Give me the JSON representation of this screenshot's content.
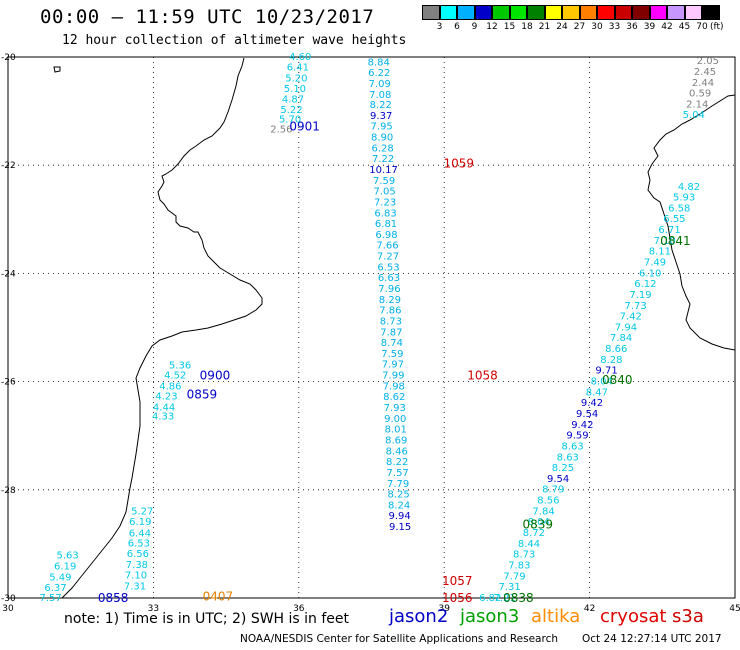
{
  "header": {
    "title": "00:00 – 11:59 UTC 10/23/2017",
    "subtitle": "12 hour collection of altimeter wave heights"
  },
  "scale": {
    "colors": [
      "#808080",
      "#00ffff",
      "#00b0ff",
      "#0000c8",
      "#00c800",
      "#00e600",
      "#008000",
      "#ffff00",
      "#ffc800",
      "#ff8000",
      "#ff0000",
      "#c80000",
      "#800000",
      "#ff00ff",
      "#c896ff",
      "#ffc8ff",
      "#000000"
    ],
    "labels": [
      "3",
      "6",
      "9",
      "12",
      "15",
      "18",
      "21",
      "24",
      "27",
      "30",
      "33",
      "36",
      "39",
      "42",
      "45",
      "70",
      "(ft)"
    ]
  },
  "axes": {
    "lon_ticks": [
      "30",
      "33",
      "36",
      "39",
      "42",
      "45"
    ],
    "lat_ticks": [
      "-20",
      "-22",
      "-24",
      "-26",
      "-28",
      "-30"
    ]
  },
  "passes": [
    {
      "label": "0901",
      "color": "#0000c8",
      "lon": 36.12,
      "lat": -21.27
    },
    {
      "label": "1059",
      "color": "#d00000",
      "lon": 39.3,
      "lat": -21.95
    },
    {
      "label": "0841",
      "color": "#007000",
      "lon": 43.77,
      "lat": -23.38
    },
    {
      "label": "0900",
      "color": "#0000c8",
      "lon": 34.27,
      "lat": -25.87
    },
    {
      "label": "1058",
      "color": "#d00000",
      "lon": 39.79,
      "lat": -25.87
    },
    {
      "label": "0840",
      "color": "#007000",
      "lon": 42.57,
      "lat": -25.95
    },
    {
      "label": "0859",
      "color": "#0000c8",
      "lon": 34.0,
      "lat": -26.22
    },
    {
      "label": "0839",
      "color": "#007000",
      "lon": 40.93,
      "lat": -28.62
    },
    {
      "label": "1057",
      "color": "#d00000",
      "lon": 39.27,
      "lat": -29.67
    },
    {
      "label": "0858",
      "color": "#0000c8",
      "lon": 32.17,
      "lat": -29.98
    },
    {
      "label": "0407",
      "color": "#e08000",
      "lon": 34.33,
      "lat": -29.95
    },
    {
      "label": "1056",
      "color": "#d00000",
      "lon": 39.27,
      "lat": -29.98
    },
    {
      "label": "0838",
      "color": "#007000",
      "lon": 40.53,
      "lat": -29.98
    }
  ],
  "tracks": [
    {
      "id": "t0901",
      "values": [
        {
          "v": "4.60",
          "c": "#00c8e6",
          "lon": 36.03,
          "lat": -19.98
        },
        {
          "v": "6.41",
          "c": "#00c8e6",
          "lon": 35.98,
          "lat": -20.18
        },
        {
          "v": "5.20",
          "c": "#00c8e6",
          "lon": 35.95,
          "lat": -20.38
        },
        {
          "v": "5.10",
          "c": "#00c8e6",
          "lon": 35.92,
          "lat": -20.57
        },
        {
          "v": "4.87",
          "c": "#00c8e6",
          "lon": 35.88,
          "lat": -20.77
        },
        {
          "v": "5.22",
          "c": "#00c8e6",
          "lon": 35.85,
          "lat": -20.96
        },
        {
          "v": "5.70",
          "c": "#00c8e6",
          "lon": 35.82,
          "lat": -21.14
        },
        {
          "v": "2.56",
          "c": "#808080",
          "lon": 35.64,
          "lat": -21.32
        }
      ]
    },
    {
      "id": "t1059",
      "values": [
        {
          "v": "8.84",
          "c": "#00b0e6",
          "lon": 37.65,
          "lat": -20.08
        },
        {
          "v": "6.22",
          "c": "#00b0e6",
          "lon": 37.66,
          "lat": -20.28
        },
        {
          "v": "7.09",
          "c": "#00b0e6",
          "lon": 37.67,
          "lat": -20.48
        },
        {
          "v": "7.08",
          "c": "#00b0e6",
          "lon": 37.68,
          "lat": -20.68
        },
        {
          "v": "8.22",
          "c": "#00b0e6",
          "lon": 37.69,
          "lat": -20.87
        },
        {
          "v": "9.37",
          "c": "#0000c8",
          "lon": 37.7,
          "lat": -21.07
        },
        {
          "v": "7.95",
          "c": "#00b0e6",
          "lon": 37.71,
          "lat": -21.27
        },
        {
          "v": "8.90",
          "c": "#00b0e6",
          "lon": 37.72,
          "lat": -21.47
        },
        {
          "v": "6.28",
          "c": "#00b0e6",
          "lon": 37.73,
          "lat": -21.67
        },
        {
          "v": "7.22",
          "c": "#00b0e6",
          "lon": 37.74,
          "lat": -21.87
        },
        {
          "v": "10.17",
          "c": "#0000c8",
          "lon": 37.75,
          "lat": -22.07
        },
        {
          "v": "7.59",
          "c": "#00b0e6",
          "lon": 37.76,
          "lat": -22.27
        },
        {
          "v": "7.05",
          "c": "#00b0e6",
          "lon": 37.77,
          "lat": -22.47
        },
        {
          "v": "7.23",
          "c": "#00b0e6",
          "lon": 37.78,
          "lat": -22.67
        },
        {
          "v": "6.83",
          "c": "#00b0e6",
          "lon": 37.79,
          "lat": -22.87
        },
        {
          "v": "6.81",
          "c": "#00b0e6",
          "lon": 37.8,
          "lat": -23.07
        },
        {
          "v": "6.98",
          "c": "#00b0e6",
          "lon": 37.81,
          "lat": -23.27
        }
      ]
    },
    {
      "id": "t1058",
      "values": [
        {
          "v": "7.66",
          "c": "#00b0e6",
          "lon": 37.83,
          "lat": -23.47
        },
        {
          "v": "7.27",
          "c": "#00b0e6",
          "lon": 37.84,
          "lat": -23.67
        },
        {
          "v": "6.53",
          "c": "#00b0e6",
          "lon": 37.85,
          "lat": -23.87
        },
        {
          "v": "6.63",
          "c": "#00b0e6",
          "lon": 37.86,
          "lat": -24.07
        },
        {
          "v": "7.96",
          "c": "#00b0e6",
          "lon": 37.87,
          "lat": -24.27
        },
        {
          "v": "8.29",
          "c": "#00b0e6",
          "lon": 37.88,
          "lat": -24.47
        },
        {
          "v": "7.86",
          "c": "#00b0e6",
          "lon": 37.89,
          "lat": -24.67
        },
        {
          "v": "8.73",
          "c": "#00b0e6",
          "lon": 37.9,
          "lat": -24.87
        },
        {
          "v": "7.87",
          "c": "#00b0e6",
          "lon": 37.91,
          "lat": -25.07
        },
        {
          "v": "8.74",
          "c": "#00b0e6",
          "lon": 37.92,
          "lat": -25.27
        },
        {
          "v": "7.59",
          "c": "#00b0e6",
          "lon": 37.93,
          "lat": -25.47
        },
        {
          "v": "7.97",
          "c": "#00b0e6",
          "lon": 37.94,
          "lat": -25.67
        },
        {
          "v": "7.99",
          "c": "#00b0e6",
          "lon": 37.95,
          "lat": -25.87
        },
        {
          "v": "7.98",
          "c": "#00b0e6",
          "lon": 37.96,
          "lat": -26.07
        },
        {
          "v": "8.62",
          "c": "#00b0e6",
          "lon": 37.97,
          "lat": -26.27
        },
        {
          "v": "7.93",
          "c": "#00b0e6",
          "lon": 37.98,
          "lat": -26.47
        },
        {
          "v": "9.00",
          "c": "#00b0e6",
          "lon": 37.99,
          "lat": -26.67
        },
        {
          "v": "8.01",
          "c": "#00b0e6",
          "lon": 38.0,
          "lat": -26.87
        }
      ]
    },
    {
      "id": "t1057",
      "values": [
        {
          "v": "8.69",
          "c": "#00b0e6",
          "lon": 38.01,
          "lat": -27.07
        },
        {
          "v": "8.46",
          "c": "#00b0e6",
          "lon": 38.02,
          "lat": -27.27
        },
        {
          "v": "8.22",
          "c": "#00b0e6",
          "lon": 38.03,
          "lat": -27.47
        },
        {
          "v": "7.57",
          "c": "#00b0e6",
          "lon": 38.04,
          "lat": -27.67
        },
        {
          "v": "7.79",
          "c": "#00b0e6",
          "lon": 38.05,
          "lat": -27.87
        },
        {
          "v": "8.25",
          "c": "#00b0e6",
          "lon": 38.06,
          "lat": -28.07
        },
        {
          "v": "8.24",
          "c": "#00b0e6",
          "lon": 38.07,
          "lat": -28.27
        },
        {
          "v": "9.94",
          "c": "#0000c8",
          "lon": 38.08,
          "lat": -28.47
        },
        {
          "v": "9.15",
          "c": "#0000c8",
          "lon": 38.09,
          "lat": -28.67
        }
      ]
    },
    {
      "id": "t0841",
      "values": [
        {
          "v": "2.05",
          "c": "#808080",
          "lon": 44.44,
          "lat": -20.06
        },
        {
          "v": "2.45",
          "c": "#808080",
          "lon": 44.38,
          "lat": -20.26
        },
        {
          "v": "2.44",
          "c": "#808080",
          "lon": 44.34,
          "lat": -20.46
        },
        {
          "v": "0.59",
          "c": "#808080",
          "lon": 44.28,
          "lat": -20.66
        },
        {
          "v": "2.14",
          "c": "#808080",
          "lon": 44.22,
          "lat": -20.86
        },
        {
          "v": "5.04",
          "c": "#00c8e6",
          "lon": 44.15,
          "lat": -21.05
        },
        {
          "v": "4.82",
          "c": "#00c8e6",
          "lon": 44.05,
          "lat": -22.38
        },
        {
          "v": "5.93",
          "c": "#00c8e6",
          "lon": 43.95,
          "lat": -22.58
        },
        {
          "v": "6.58",
          "c": "#00c8e6",
          "lon": 43.85,
          "lat": -22.78
        },
        {
          "v": "6.55",
          "c": "#00c8e6",
          "lon": 43.75,
          "lat": -22.98
        },
        {
          "v": "6.71",
          "c": "#00c8e6",
          "lon": 43.65,
          "lat": -23.18
        },
        {
          "v": "7.10",
          "c": "#00c8e6",
          "lon": 43.55,
          "lat": -23.38
        },
        {
          "v": "8.11",
          "c": "#00c8e6",
          "lon": 43.45,
          "lat": -23.58
        },
        {
          "v": "7.49",
          "c": "#00c8e6",
          "lon": 43.35,
          "lat": -23.78
        },
        {
          "v": "6.10",
          "c": "#00c8e6",
          "lon": 43.25,
          "lat": -23.98
        }
      ]
    },
    {
      "id": "t0840",
      "values": [
        {
          "v": "6.12",
          "c": "#00c8e6",
          "lon": 43.15,
          "lat": -24.18
        },
        {
          "v": "7.19",
          "c": "#00c8e6",
          "lon": 43.05,
          "lat": -24.38
        },
        {
          "v": "7.73",
          "c": "#00c8e6",
          "lon": 42.95,
          "lat": -24.58
        },
        {
          "v": "7.42",
          "c": "#00c8e6",
          "lon": 42.85,
          "lat": -24.78
        },
        {
          "v": "7.94",
          "c": "#00c8e6",
          "lon": 42.75,
          "lat": -24.98
        },
        {
          "v": "7.84",
          "c": "#00c8e6",
          "lon": 42.65,
          "lat": -25.18
        },
        {
          "v": "8.66",
          "c": "#00c8e6",
          "lon": 42.55,
          "lat": -25.38
        },
        {
          "v": "8.28",
          "c": "#00c8e6",
          "lon": 42.45,
          "lat": -25.58
        },
        {
          "v": "9.71",
          "c": "#0000c8",
          "lon": 42.35,
          "lat": -25.78
        },
        {
          "v": "8.04",
          "c": "#00c8e6",
          "lon": 42.25,
          "lat": -25.98
        },
        {
          "v": "8.47",
          "c": "#00c8e6",
          "lon": 42.15,
          "lat": -26.18
        },
        {
          "v": "9.42",
          "c": "#0000c8",
          "lon": 42.05,
          "lat": -26.38
        },
        {
          "v": "9.54",
          "c": "#0000c8",
          "lon": 41.95,
          "lat": -26.58
        },
        {
          "v": "9.42",
          "c": "#0000c8",
          "lon": 41.85,
          "lat": -26.78
        },
        {
          "v": "9.59",
          "c": "#0000c8",
          "lon": 41.75,
          "lat": -26.98
        }
      ]
    },
    {
      "id": "t0839",
      "values": [
        {
          "v": "8.63",
          "c": "#00c8e6",
          "lon": 41.65,
          "lat": -27.18
        },
        {
          "v": "8.63",
          "c": "#00c8e6",
          "lon": 41.55,
          "lat": -27.38
        },
        {
          "v": "8.25",
          "c": "#00c8e6",
          "lon": 41.45,
          "lat": -27.58
        },
        {
          "v": "9.54",
          "c": "#0000c8",
          "lon": 41.35,
          "lat": -27.78
        },
        {
          "v": "8.79",
          "c": "#00c8e6",
          "lon": 41.25,
          "lat": -27.98
        },
        {
          "v": "8.56",
          "c": "#00c8e6",
          "lon": 41.15,
          "lat": -28.18
        },
        {
          "v": "7.84",
          "c": "#00c8e6",
          "lon": 41.05,
          "lat": -28.38
        },
        {
          "v": "8.04",
          "c": "#00c8e6",
          "lon": 40.95,
          "lat": -28.58
        },
        {
          "v": "8.72",
          "c": "#00c8e6",
          "lon": 40.85,
          "lat": -28.78
        },
        {
          "v": "8.44",
          "c": "#00c8e6",
          "lon": 40.75,
          "lat": -28.98
        },
        {
          "v": "8.73",
          "c": "#00c8e6",
          "lon": 40.65,
          "lat": -29.18
        },
        {
          "v": "7.83",
          "c": "#00c8e6",
          "lon": 40.55,
          "lat": -29.38
        },
        {
          "v": "7.79",
          "c": "#00c8e6",
          "lon": 40.45,
          "lat": -29.58
        },
        {
          "v": "7.31",
          "c": "#00c8e6",
          "lon": 40.35,
          "lat": -29.78
        },
        {
          "v": "7.21",
          "c": "#00c8e6",
          "lon": 40.25,
          "lat": -29.98
        },
        {
          "v": "6.82",
          "c": "#00c8e6",
          "lon": 39.95,
          "lat": -29.98
        }
      ]
    },
    {
      "id": "t0900",
      "values": [
        {
          "v": "5.36",
          "c": "#00c8e6",
          "lon": 33.55,
          "lat": -25.68
        },
        {
          "v": "4.52",
          "c": "#00c8e6",
          "lon": 33.45,
          "lat": -25.87
        },
        {
          "v": "4.86",
          "c": "#00c8e6",
          "lon": 33.35,
          "lat": -26.07
        },
        {
          "v": "4.23",
          "c": "#00c8e6",
          "lon": 33.27,
          "lat": -26.26
        },
        {
          "v": "4.44",
          "c": "#00c8e6",
          "lon": 33.22,
          "lat": -26.46
        },
        {
          "v": "4.33",
          "c": "#00c8e6",
          "lon": 33.2,
          "lat": -26.63
        }
      ]
    },
    {
      "id": "t0858",
      "values": [
        {
          "v": "5.27",
          "c": "#00c8e6",
          "lon": 32.77,
          "lat": -28.38
        },
        {
          "v": "6.19",
          "c": "#00c8e6",
          "lon": 32.73,
          "lat": -28.58
        },
        {
          "v": "6.44",
          "c": "#00c8e6",
          "lon": 32.72,
          "lat": -28.79
        },
        {
          "v": "6.53",
          "c": "#00c8e6",
          "lon": 32.7,
          "lat": -28.97
        },
        {
          "v": "6.56",
          "c": "#00c8e6",
          "lon": 32.68,
          "lat": -29.17
        },
        {
          "v": "7.38",
          "c": "#00c8e6",
          "lon": 32.66,
          "lat": -29.37
        },
        {
          "v": "7.10",
          "c": "#00c8e6",
          "lon": 32.64,
          "lat": -29.57
        },
        {
          "v": "7.31",
          "c": "#00c8e6",
          "lon": 32.62,
          "lat": -29.77
        },
        {
          "v": "5.63",
          "c": "#00c8e6",
          "lon": 31.23,
          "lat": -29.2
        },
        {
          "v": "6.19",
          "c": "#00c8e6",
          "lon": 31.18,
          "lat": -29.4
        },
        {
          "v": "5.49",
          "c": "#00c8e6",
          "lon": 31.08,
          "lat": -29.6
        },
        {
          "v": "6.37",
          "c": "#00c8e6",
          "lon": 30.98,
          "lat": -29.8
        },
        {
          "v": "7.57",
          "c": "#00c8e6",
          "lon": 30.88,
          "lat": -29.98
        }
      ]
    }
  ],
  "legend": {
    "note": "note: 1) Time is in UTC; 2) SWH is in feet",
    "sats": [
      {
        "name": "jason2",
        "color": "#0000c8"
      },
      {
        "name": "jason3",
        "color": "#00a000"
      },
      {
        "name": "altika",
        "color": "#ff8c00"
      },
      {
        "name": "cryosat",
        "color": "#e00000"
      },
      {
        "name": "s3a",
        "color": "#cc0000"
      }
    ]
  },
  "footer": {
    "credit": "NOAA/NESDIS Center for Satellite Applications and Research",
    "date": "Oct 24 12:27:14 UTC 2017"
  }
}
